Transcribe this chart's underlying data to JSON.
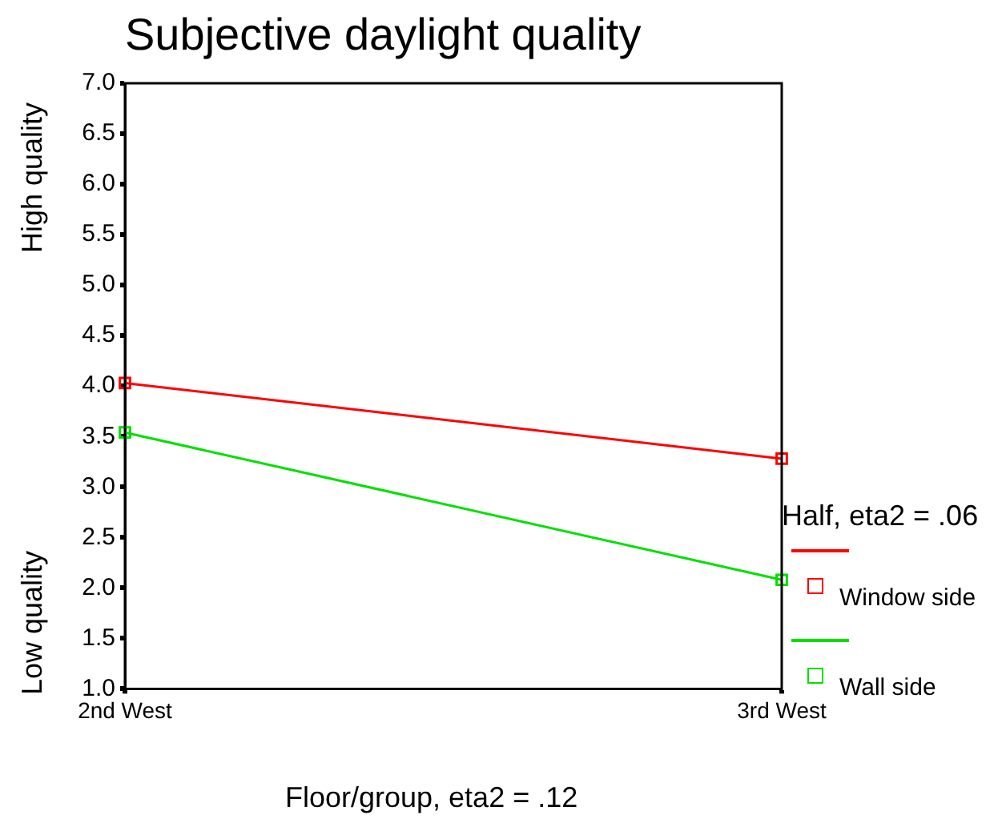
{
  "chart_data": {
    "type": "line",
    "title": "Subjective daylight quality",
    "xlabel": "Floor/group, eta2 = .12",
    "ylabel": "Low quality",
    "annotations": [
      "High quality"
    ],
    "legend_title": "Half, eta2 = .06",
    "legend": "right",
    "marker": "square",
    "grid": false,
    "categories": [
      "2nd West",
      "3rd West"
    ],
    "series": [
      {
        "name": "Window side",
        "color": "#ff0000",
        "values": [
          4.03,
          3.28
        ]
      },
      {
        "name": "Wall side",
        "color": "#00e000",
        "values": [
          3.54,
          2.08
        ]
      }
    ],
    "ylim": [
      1,
      7
    ],
    "yticks": [
      {
        "value": 1,
        "label": "1.0"
      },
      {
        "value": 1.5,
        "label": "1.5"
      },
      {
        "value": 2,
        "label": "2.0"
      },
      {
        "value": 2.5,
        "label": "2.5"
      },
      {
        "value": 3,
        "label": "3.0"
      },
      {
        "value": 3.5,
        "label": "3.5"
      },
      {
        "value": 4,
        "label": "4.0"
      },
      {
        "value": 4.5,
        "label": "4.5"
      },
      {
        "value": 5,
        "label": "5.0"
      },
      {
        "value": 5.5,
        "label": "5.5"
      },
      {
        "value": 6,
        "label": "6.0"
      },
      {
        "value": 6.5,
        "label": "6.5"
      },
      {
        "value": 7,
        "label": "7.0"
      }
    ]
  }
}
